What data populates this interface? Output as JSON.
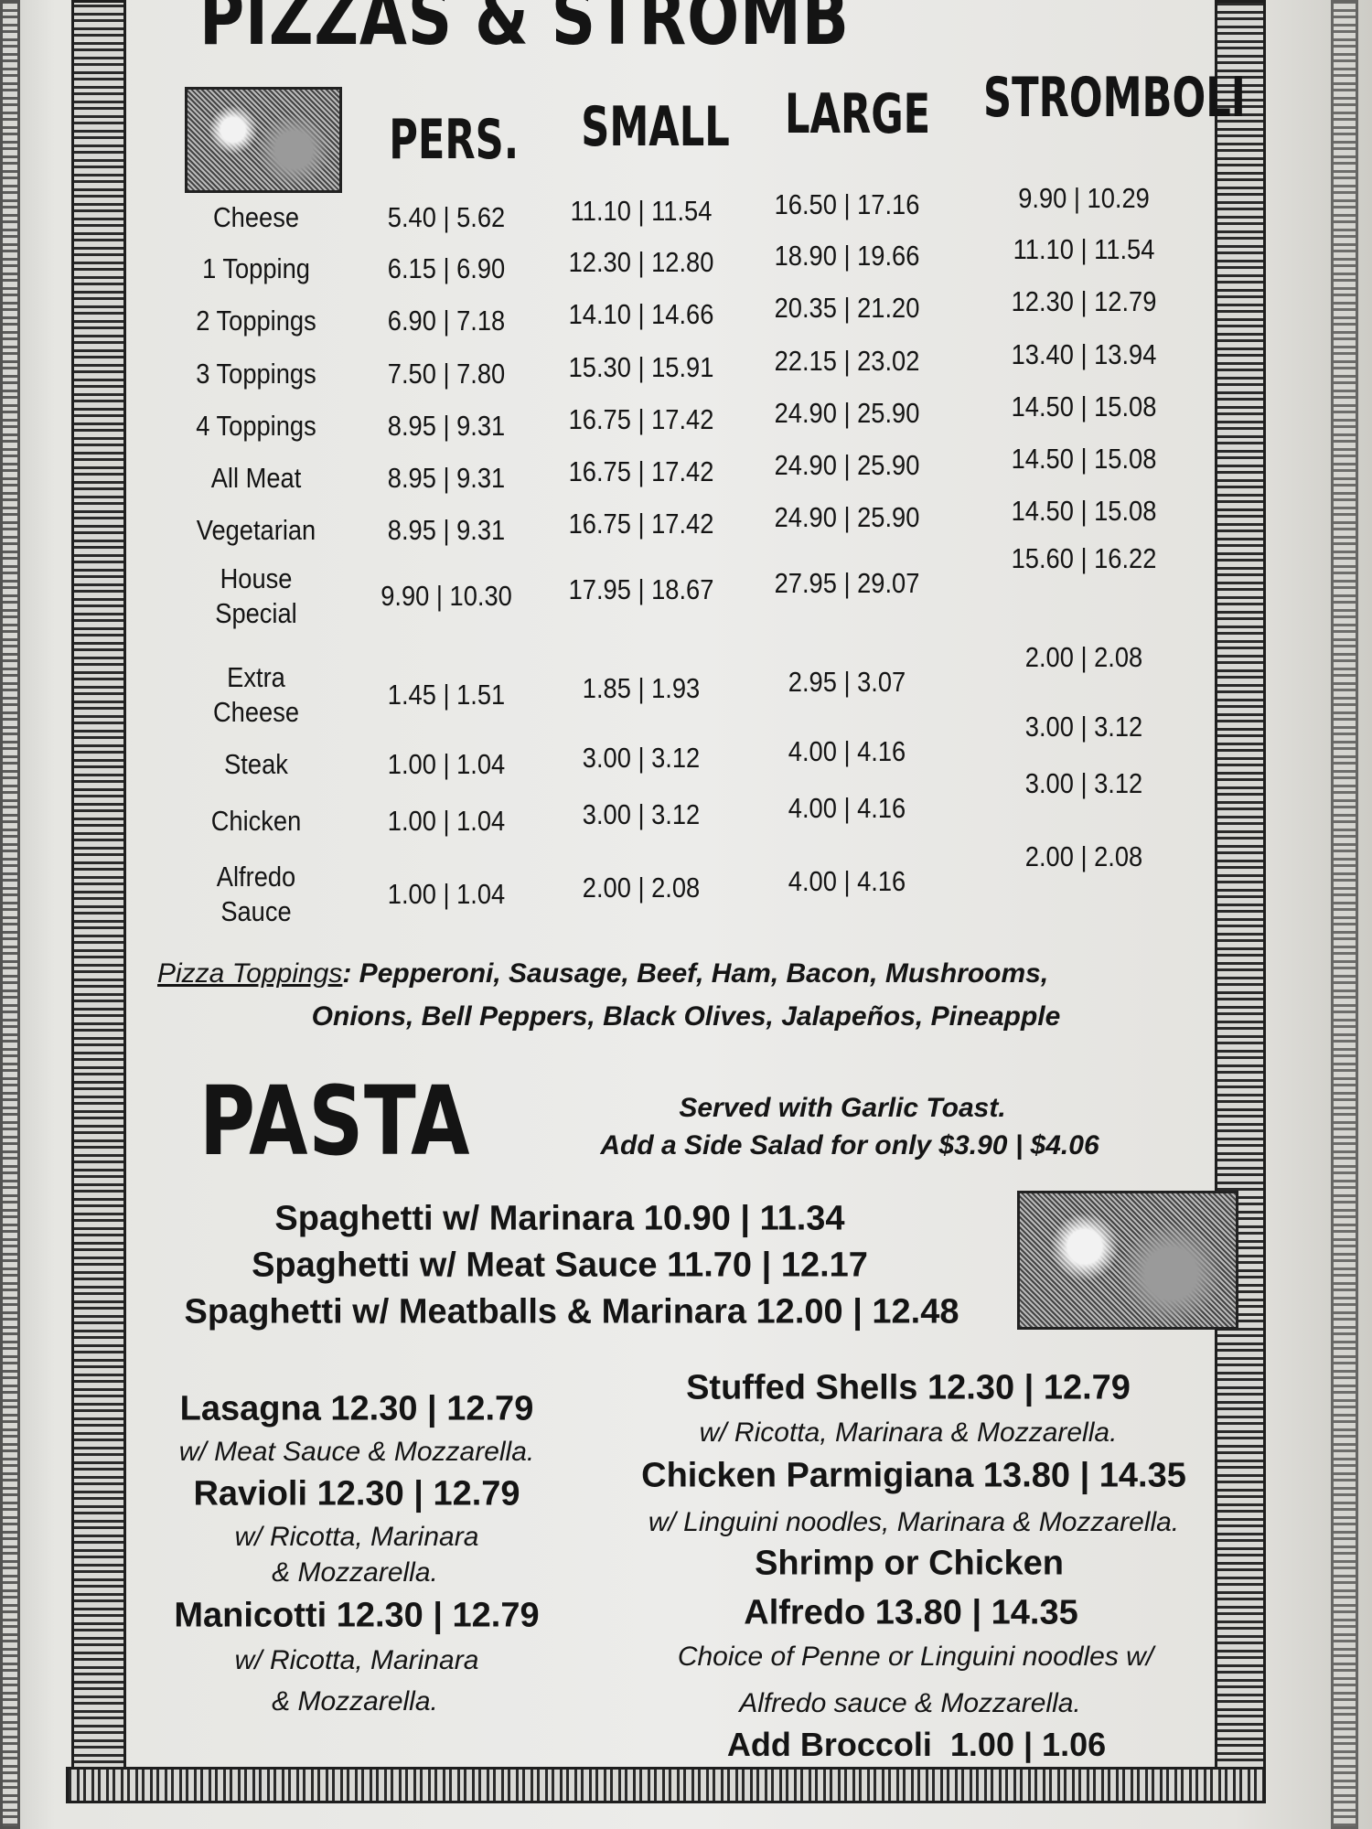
{
  "title": "PIZZAS & STROMB",
  "pizza_table": {
    "columns": [
      "PERS.",
      "SMALL",
      "LARGE",
      "STROMBOLI"
    ],
    "rows": [
      {
        "label": "Cheese",
        "prices": [
          "5.40 | 5.62",
          "11.10 | 11.54",
          "16.50 | 17.16",
          "9.90 | 10.29"
        ]
      },
      {
        "label": "1 Topping",
        "prices": [
          "6.15 | 6.90",
          "12.30 | 12.80",
          "18.90 | 19.66",
          "11.10 | 11.54"
        ]
      },
      {
        "label": "2 Toppings",
        "prices": [
          "6.90 | 7.18",
          "14.10 | 14.66",
          "20.35 | 21.20",
          "12.30 | 12.79"
        ]
      },
      {
        "label": "3 Toppings",
        "prices": [
          "7.50 | 7.80",
          "15.30 | 15.91",
          "22.15 | 23.02",
          "13.40 | 13.94"
        ]
      },
      {
        "label": "4 Toppings",
        "prices": [
          "8.95 | 9.31",
          "16.75 | 17.42",
          "24.90 | 25.90",
          "14.50 | 15.08"
        ]
      },
      {
        "label": "All Meat",
        "prices": [
          "8.95 | 9.31",
          "16.75 | 17.42",
          "24.90 | 25.90",
          "14.50 | 15.08"
        ]
      },
      {
        "label": "Vegetarian",
        "prices": [
          "8.95 | 9.31",
          "16.75 | 17.42",
          "24.90 | 25.90",
          "14.50 | 15.08"
        ]
      },
      {
        "label": "House\nSpecial",
        "prices": [
          "9.90 | 10.30",
          "17.95 | 18.67",
          "27.95 | 29.07",
          "15.60 | 16.22"
        ]
      },
      {
        "label": "Extra\nCheese",
        "prices": [
          "1.45 | 1.51",
          "1.85 | 1.93",
          "2.95 | 3.07",
          "2.00 | 2.08"
        ]
      },
      {
        "label": "Steak",
        "prices": [
          "1.00 | 1.04",
          "3.00 | 3.12",
          "4.00 | 4.16",
          "3.00 | 3.12"
        ]
      },
      {
        "label": "Chicken",
        "prices": [
          "1.00 | 1.04",
          "3.00 | 3.12",
          "4.00 | 4.16",
          "3.00 | 3.12"
        ]
      },
      {
        "label": "Alfredo\nSauce",
        "prices": [
          "1.00 | 1.04",
          "2.00 | 2.08",
          "4.00 | 4.16",
          "2.00 | 2.08"
        ]
      }
    ]
  },
  "toppings": {
    "heading": "Pizza Toppings",
    "line1": ": Pepperoni, Sausage, Beef, Ham, Bacon, Mushrooms,",
    "line2": "Onions, Bell Peppers, Black Olives, Jalapeños, Pineapple"
  },
  "pasta": {
    "heading": "PASTA",
    "note1": "Served with Garlic Toast.",
    "note2": "Add a Side Salad for only $3.90 | $4.06",
    "spaghetti": [
      "Spaghetti w/ Marinara 10.90 | 11.34",
      "Spaghetti w/ Meat Sauce 11.70 | 12.17",
      "Spaghetti w/ Meatballs & Marinara 12.00 | 12.48"
    ],
    "left": [
      {
        "name": "Lasagna 12.30 | 12.79",
        "desc": [
          "w/ Meat Sauce & Mozzarella."
        ]
      },
      {
        "name": "Ravioli 12.30 | 12.79",
        "desc": [
          "w/ Ricotta, Marinara",
          "& Mozzarella."
        ]
      },
      {
        "name": "Manicotti 12.30 | 12.79",
        "desc": [
          "w/ Ricotta, Marinara",
          "& Mozzarella."
        ]
      }
    ],
    "right": [
      {
        "name": "Stuffed Shells 12.30 | 12.79",
        "desc": [
          "w/ Ricotta, Marinara & Mozzarella."
        ]
      },
      {
        "name": "Chicken Parmigiana 13.80 | 14.35",
        "desc": [
          "w/ Linguini noodles, Marinara & Mozzarella."
        ]
      },
      {
        "name": "Shrimp or Chicken",
        "name2": "Alfredo 13.80 | 14.35",
        "desc": [
          "Choice of Penne or Linguini noodles w/",
          "Alfredo sauce & Mozzarella."
        ]
      }
    ],
    "addon": "Add Broccoli  1.00 | 1.06"
  }
}
